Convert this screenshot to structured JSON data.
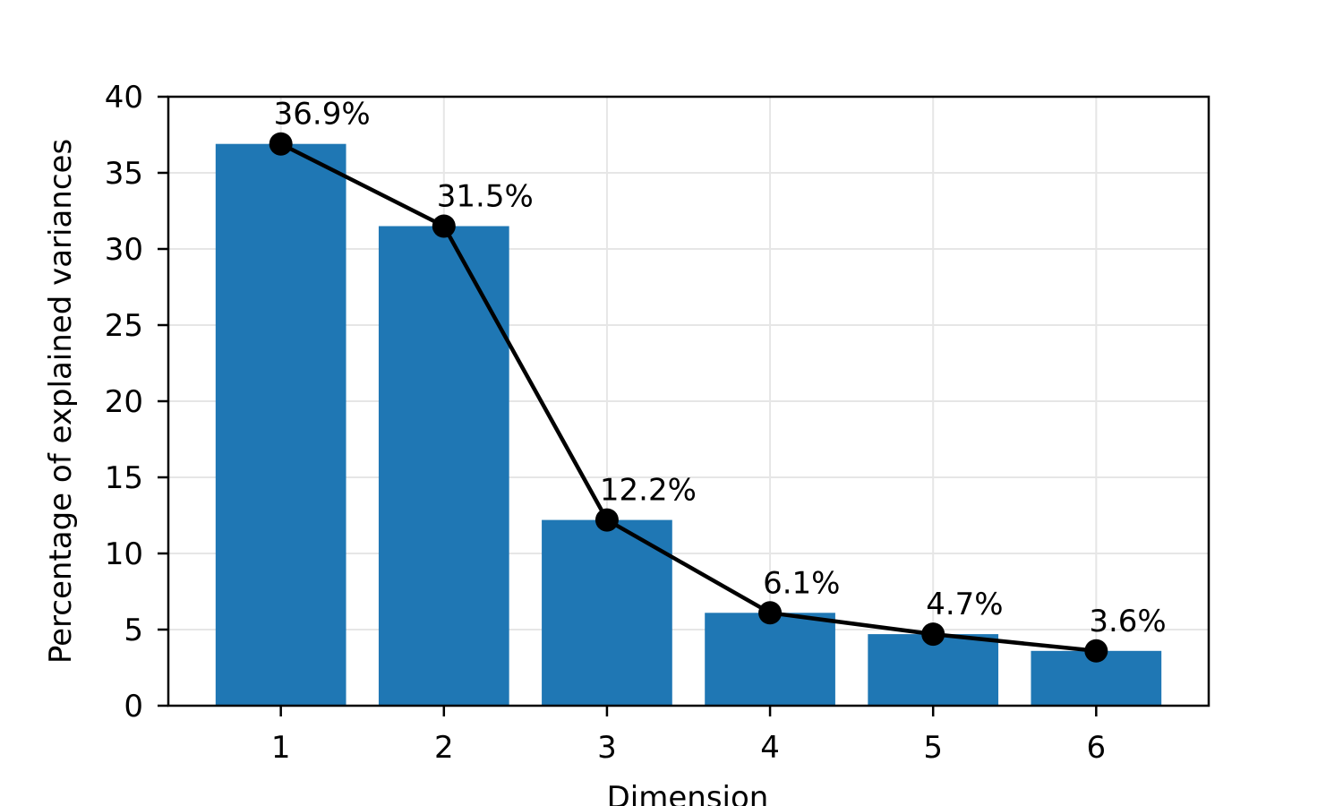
{
  "chart_data": {
    "type": "bar",
    "categories": [
      "1",
      "2",
      "3",
      "4",
      "5",
      "6"
    ],
    "values": [
      36.9,
      31.5,
      12.2,
      6.1,
      4.7,
      3.6
    ],
    "data_labels": [
      "36.9%",
      "31.5%",
      "12.2%",
      "6.1%",
      "4.7%",
      "3.6%"
    ],
    "overlay_line": {
      "type": "line",
      "values": [
        36.9,
        31.5,
        12.2,
        6.1,
        4.7,
        3.6
      ],
      "markers": "circle",
      "color": "#000000"
    },
    "title": "",
    "xlabel": "Dimension",
    "ylabel": "Percentage of explained variances",
    "ylim": [
      0,
      40
    ],
    "yticks": [
      0,
      5,
      10,
      15,
      20,
      25,
      30,
      35,
      40
    ],
    "grid": true,
    "bar_color": "#1f77b4",
    "grid_color": "#e6e6e6",
    "axis_color": "#000000"
  }
}
